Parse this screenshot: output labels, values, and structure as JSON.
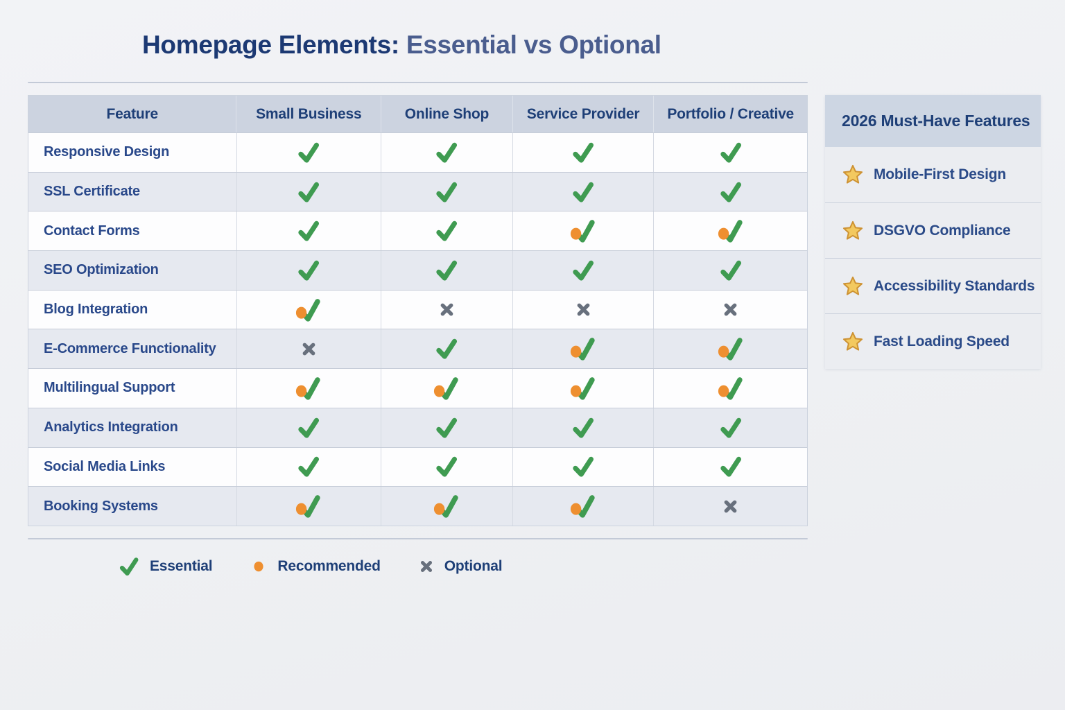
{
  "title": {
    "primary": "Homepage Elements:",
    "secondary": " Essential vs Optional"
  },
  "chart_data": {
    "type": "table",
    "title": "Homepage Elements: Essential vs Optional",
    "columns": [
      "Feature",
      "Small Business",
      "Online Shop",
      "Service Provider",
      "Portfolio / Creative"
    ],
    "rows": [
      {
        "feature": "Responsive Design",
        "cells": [
          "essential",
          "essential",
          "essential",
          "essential"
        ]
      },
      {
        "feature": "SSL Certificate",
        "cells": [
          "essential",
          "essential",
          "essential",
          "essential"
        ]
      },
      {
        "feature": "Contact Forms",
        "cells": [
          "essential",
          "essential",
          "recommended",
          "recommended"
        ]
      },
      {
        "feature": "SEO Optimization",
        "cells": [
          "essential",
          "essential",
          "essential",
          "essential"
        ]
      },
      {
        "feature": "Blog Integration",
        "cells": [
          "recommended",
          "optional",
          "optional",
          "optional"
        ]
      },
      {
        "feature": "E-Commerce Functionality",
        "cells": [
          "optional",
          "essential",
          "recommended",
          "recommended"
        ]
      },
      {
        "feature": "Multilingual Support",
        "cells": [
          "recommended",
          "recommended",
          "recommended",
          "recommended"
        ]
      },
      {
        "feature": "Analytics Integration",
        "cells": [
          "essential",
          "essential",
          "essential",
          "essential"
        ]
      },
      {
        "feature": "Social Media Links",
        "cells": [
          "essential",
          "essential",
          "essential",
          "essential"
        ]
      },
      {
        "feature": "Booking Systems",
        "cells": [
          "recommended",
          "recommended",
          "recommended",
          "optional"
        ]
      }
    ],
    "cell_icon_map": {
      "essential": "check-icon",
      "recommended": "check-with-dot-icon",
      "optional": "x-icon"
    }
  },
  "legend": [
    {
      "icon": "check-icon",
      "label": "Essential"
    },
    {
      "icon": "dot-icon",
      "label": "Recommended"
    },
    {
      "icon": "x-icon",
      "label": "Optional"
    }
  ],
  "sidebar": {
    "title": "2026 Must-Have Features",
    "items": [
      {
        "icon": "star-icon",
        "label": "Mobile-First Design"
      },
      {
        "icon": "star-icon",
        "label": "DSGVO Compliance"
      },
      {
        "icon": "star-icon",
        "label": "Accessibility Standards"
      },
      {
        "icon": "star-icon",
        "label": "Fast Loading Speed"
      }
    ]
  },
  "colors": {
    "essential_green": "#3f9b51",
    "recommended_orange": "#ee8f30",
    "optional_gray": "#68707d",
    "star_gold_fill": "#f3c95f",
    "star_gold_stroke": "#cd9233",
    "title_navy": "#1c3973",
    "title_light_navy": "#4a5d8e",
    "header_bg": "#ccd3e0",
    "alt_row_bg": "#e6e9f0"
  }
}
